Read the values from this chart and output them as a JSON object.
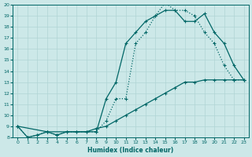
{
  "xlabel": "Humidex (Indice chaleur)",
  "background_color": "#cce8e8",
  "grid_color": "#b0d4d4",
  "line_color": "#006666",
  "xlim": [
    -0.5,
    23.5
  ],
  "ylim": [
    8,
    20
  ],
  "yticks": [
    8,
    9,
    10,
    11,
    12,
    13,
    14,
    15,
    16,
    17,
    18,
    19,
    20
  ],
  "xticks": [
    0,
    1,
    2,
    3,
    4,
    5,
    6,
    7,
    8,
    9,
    10,
    11,
    12,
    13,
    14,
    15,
    16,
    17,
    18,
    19,
    20,
    21,
    22,
    23
  ],
  "line_dotted_x": [
    0,
    1,
    2,
    3,
    4,
    5,
    6,
    7,
    8,
    9,
    10,
    11,
    12,
    13,
    14,
    15,
    16,
    17,
    18,
    19,
    20,
    21,
    22,
    23
  ],
  "line_dotted_y": [
    9.0,
    8.0,
    8.2,
    8.5,
    8.2,
    8.5,
    8.5,
    8.5,
    8.5,
    9.5,
    11.5,
    11.5,
    16.5,
    17.5,
    19.0,
    20.2,
    19.5,
    19.5,
    19.0,
    17.5,
    16.5,
    14.5,
    13.2,
    13.2
  ],
  "line_solid1_x": [
    0,
    3,
    8,
    9,
    10,
    11,
    12,
    13,
    14,
    15,
    16,
    17,
    18,
    19,
    20,
    21,
    22,
    23
  ],
  "line_solid1_y": [
    9.0,
    8.5,
    8.5,
    11.5,
    13.0,
    16.5,
    17.5,
    18.5,
    19.0,
    19.5,
    19.5,
    18.5,
    18.5,
    19.2,
    17.5,
    16.5,
    14.5,
    13.2
  ],
  "line_solid2_x": [
    0,
    1,
    2,
    3,
    4,
    5,
    6,
    7,
    8,
    9,
    10,
    11,
    12,
    13,
    14,
    15,
    16,
    17,
    18,
    19,
    20,
    21,
    22,
    23
  ],
  "line_solid2_y": [
    9.0,
    8.0,
    8.2,
    8.5,
    8.2,
    8.5,
    8.5,
    8.5,
    8.8,
    9.0,
    9.5,
    10.0,
    10.5,
    11.0,
    11.5,
    12.0,
    12.5,
    13.0,
    13.0,
    13.2,
    13.2,
    13.2,
    13.2,
    13.2
  ]
}
